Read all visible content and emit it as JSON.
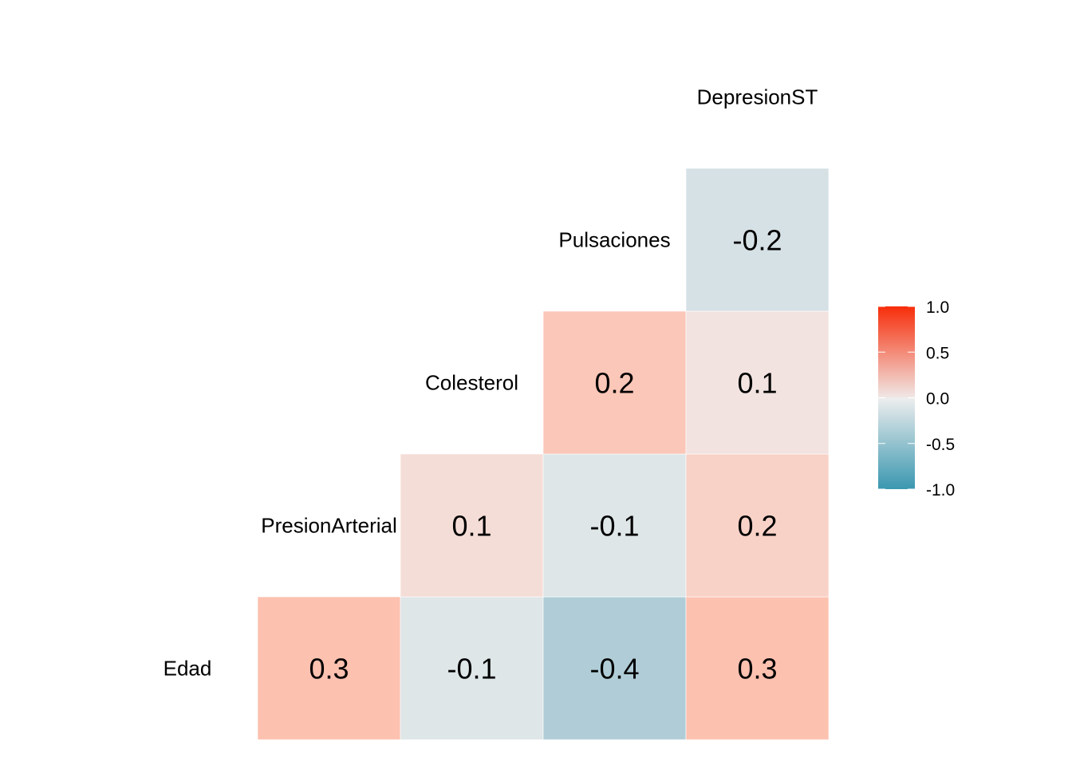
{
  "chart_data": {
    "type": "heatmap",
    "title": "",
    "variables": [
      "Edad",
      "PresionArterial",
      "Colesterol",
      "Pulsaciones",
      "DepresionST"
    ],
    "cells": [
      {
        "row": "Edad",
        "col": "PresionArterial",
        "value": 0.3,
        "label": "0.3",
        "fill": "#FDC1B0"
      },
      {
        "row": "Edad",
        "col": "Colesterol",
        "value": -0.1,
        "label": "-0.1",
        "fill": "#DEE6E8"
      },
      {
        "row": "Edad",
        "col": "Pulsaciones",
        "value": -0.4,
        "label": "-0.4",
        "fill": "#B0CDD7"
      },
      {
        "row": "Edad",
        "col": "DepresionST",
        "value": 0.3,
        "label": "0.3",
        "fill": "#FDC1B0"
      },
      {
        "row": "PresionArterial",
        "col": "Colesterol",
        "value": 0.1,
        "label": "0.1",
        "fill": "#F5DDD7"
      },
      {
        "row": "PresionArterial",
        "col": "Pulsaciones",
        "value": -0.1,
        "label": "-0.1",
        "fill": "#DEE6E8"
      },
      {
        "row": "PresionArterial",
        "col": "DepresionST",
        "value": 0.2,
        "label": "0.2",
        "fill": "#F8D2C7"
      },
      {
        "row": "Colesterol",
        "col": "Pulsaciones",
        "value": 0.2,
        "label": "0.2",
        "fill": "#FBC7B8"
      },
      {
        "row": "Colesterol",
        "col": "DepresionST",
        "value": 0.1,
        "label": "0.1",
        "fill": "#F2E3E0"
      },
      {
        "row": "Pulsaciones",
        "col": "DepresionST",
        "value": -0.2,
        "label": "-0.2",
        "fill": "#D6E1E6"
      }
    ],
    "legend": {
      "placement": "right",
      "range": [
        -1,
        1
      ],
      "ticks": [
        "1.0",
        "0.5",
        "0.0",
        "-0.5",
        "-1.0"
      ],
      "tick_values": [
        1,
        0.5,
        0,
        -0.5,
        -1
      ],
      "colors": {
        "low": "#3A97B0",
        "mid": "#EEEEEE",
        "high": "#F72D0A"
      }
    }
  }
}
